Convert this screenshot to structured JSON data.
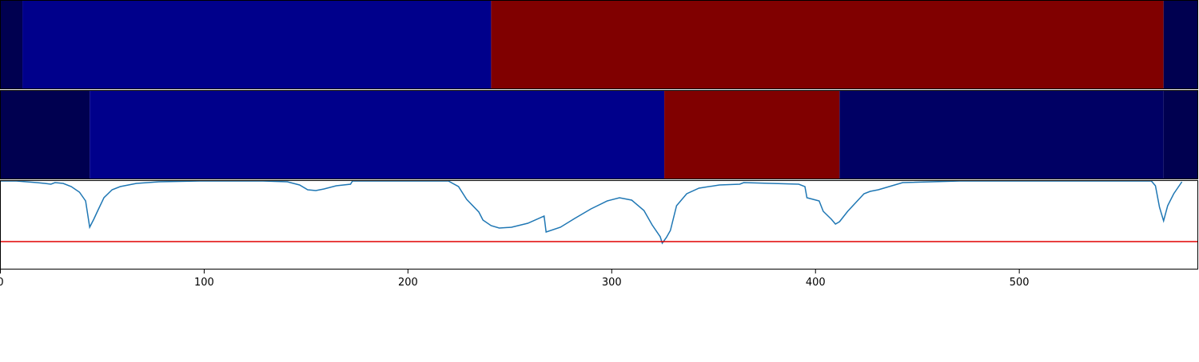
{
  "chart_data": {
    "type": "line",
    "xlim": [
      0,
      588
    ],
    "xticks": [
      0,
      100,
      200,
      300,
      400,
      500
    ],
    "ylim": [
      0,
      112
    ],
    "strips": [
      {
        "segments": [
          {
            "start": 0,
            "end": 11,
            "color": "#000050"
          },
          {
            "start": 11,
            "end": 241,
            "color": "#00008b"
          },
          {
            "start": 241,
            "end": 571,
            "color": "#800000"
          },
          {
            "start": 571,
            "end": 588,
            "color": "#000050"
          }
        ]
      },
      {
        "segments": [
          {
            "start": 0,
            "end": 44,
            "color": "#000050"
          },
          {
            "start": 44,
            "end": 326,
            "color": "#00008b"
          },
          {
            "start": 326,
            "end": 412,
            "color": "#800000"
          },
          {
            "start": 412,
            "end": 571,
            "color": "#000064"
          },
          {
            "start": 571,
            "end": 588,
            "color": "#000050"
          }
        ]
      }
    ],
    "x": [
      0,
      8,
      18,
      22,
      25,
      27,
      31,
      35,
      39,
      42,
      44,
      46,
      48,
      51,
      55,
      59,
      67,
      78,
      98,
      129,
      141,
      147,
      151,
      155,
      159,
      165,
      172,
      173,
      220,
      225,
      229,
      235,
      237,
      241,
      245,
      251,
      259,
      267,
      268,
      275,
      282,
      290,
      298,
      304,
      310,
      316,
      320,
      324,
      325,
      327,
      329,
      332,
      337,
      343,
      353,
      363,
      365,
      392,
      395,
      396,
      402,
      404,
      408,
      410,
      412,
      416,
      420,
      424,
      427,
      431,
      435,
      443,
      471,
      565,
      567,
      569,
      571,
      573,
      576,
      580
    ],
    "series": [
      {
        "color": "#1f77b4",
        "values": [
          111,
          111,
          109,
          108,
          107,
          109,
          108,
          104,
          97,
          86,
          53,
          63,
          74,
          90,
          100,
          104,
          108,
          110,
          111,
          111,
          110,
          106,
          100,
          99,
          101,
          105,
          107,
          111,
          111,
          104,
          88,
          72,
          62,
          55,
          52,
          53,
          58,
          67,
          47,
          53,
          64,
          76,
          86,
          90,
          87,
          74,
          56,
          41,
          33,
          40,
          49,
          80,
          95,
          102,
          106,
          107,
          109,
          107,
          104,
          90,
          86,
          73,
          63,
          57,
          60,
          73,
          84,
          95,
          98,
          100,
          103,
          109,
          111,
          111,
          105,
          78,
          61,
          80,
          95,
          110
        ]
      }
    ],
    "hline": {
      "value": 35,
      "color": "#e00000"
    }
  }
}
